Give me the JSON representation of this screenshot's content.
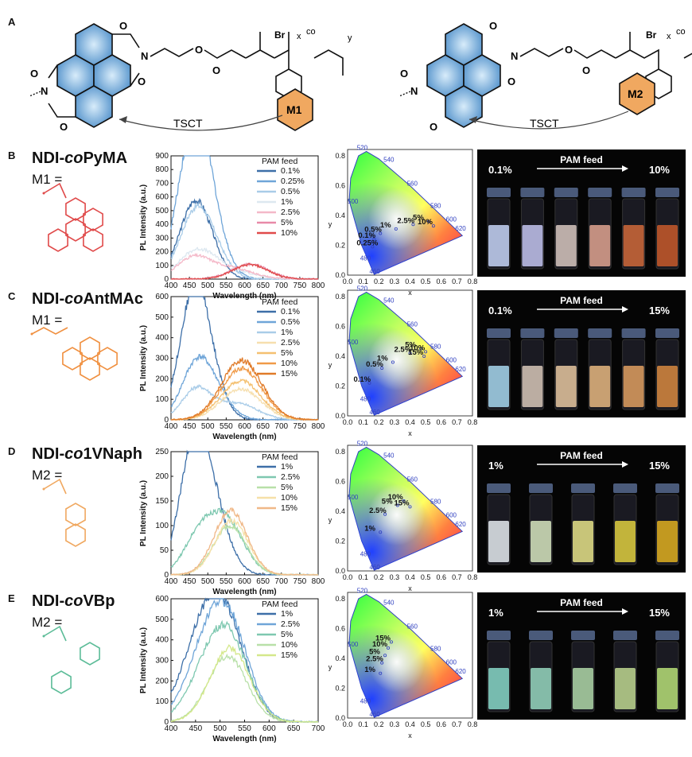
{
  "panel_a": {
    "label": "A",
    "br_label": "Br",
    "tsct_label": "TSCT",
    "left_monomer": "M1",
    "right_monomer": "M2"
  },
  "chart_data": [
    {
      "id": "B",
      "type": "line",
      "panel_label": "B",
      "polymer_prefix": "NDI-",
      "polymer_italic": "co",
      "polymer_suffix": "PyMA",
      "monomer_label": "M1 =",
      "substituent_color": "#e04a4a",
      "xlabel": "Wavelength (nm)",
      "ylabel": "PL Intensity (a.u.)",
      "xlim": [
        400,
        800
      ],
      "ylim": [
        0,
        900
      ],
      "xticks": [
        400,
        450,
        500,
        550,
        600,
        650,
        700,
        750,
        800
      ],
      "yticks": [
        0,
        100,
        200,
        300,
        400,
        500,
        600,
        700,
        800,
        900
      ],
      "legend_title": "PAM feed",
      "series": [
        {
          "name": "0.1%",
          "color": "#3d6fa8",
          "peaks": [
            [
              455,
              380,
              40
            ],
            [
              490,
              250,
              40
            ]
          ]
        },
        {
          "name": "0.25%",
          "color": "#6fa5d8",
          "peaks": [
            [
              458,
              860,
              42
            ],
            [
              495,
              440,
              45
            ]
          ]
        },
        {
          "name": "0.5%",
          "color": "#a9cce8",
          "peaks": [
            [
              460,
              350,
              42
            ],
            [
              500,
              240,
              45
            ]
          ]
        },
        {
          "name": "1%",
          "color": "#dde8f0",
          "peaks": [
            [
              470,
              200,
              50
            ],
            [
              560,
              60,
              60
            ]
          ]
        },
        {
          "name": "2.5%",
          "color": "#f4b8c8",
          "peaks": [
            [
              460,
              150,
              45
            ],
            [
              560,
              80,
              60
            ]
          ]
        },
        {
          "name": "5%",
          "color": "#e88aa8",
          "peaks": [
            [
              615,
              110,
              50
            ]
          ]
        },
        {
          "name": "10%",
          "color": "#e04a4a",
          "peaks": [
            [
              615,
              105,
              48
            ]
          ]
        }
      ],
      "cie_labels": [
        "0.1%",
        "0.25%",
        "0.5%",
        "1%",
        "2.5%",
        "5%",
        "10%"
      ],
      "cie_points": [
        [
          0.17,
          0.24
        ],
        [
          0.16,
          0.19
        ],
        [
          0.21,
          0.28
        ],
        [
          0.31,
          0.31
        ],
        [
          0.42,
          0.34
        ],
        [
          0.52,
          0.36
        ],
        [
          0.55,
          0.33
        ]
      ],
      "photo_left": "0.1%",
      "photo_center": "PAM feed",
      "photo_right": "10%",
      "vial_colors": [
        "#c8d6f8",
        "#c4c6f0",
        "#d8c8c0",
        "#e0a590",
        "#d06a3a",
        "#c85a2a"
      ]
    },
    {
      "id": "C",
      "type": "line",
      "panel_label": "C",
      "polymer_prefix": "NDI-",
      "polymer_italic": "co",
      "polymer_suffix": "AntMAc",
      "monomer_label": "M1 =",
      "substituent_color": "#f09040",
      "xlabel": "Wavelength (nm)",
      "ylabel": "PL Intensity (a.u.)",
      "xlim": [
        400,
        800
      ],
      "ylim": [
        0,
        600
      ],
      "xticks": [
        400,
        450,
        500,
        550,
        600,
        650,
        700,
        750,
        800
      ],
      "yticks": [
        0,
        100,
        200,
        300,
        400,
        500,
        600
      ],
      "legend_title": "PAM feed",
      "series": [
        {
          "name": "0.1%",
          "color": "#3d6fa8",
          "peaks": [
            [
              460,
              540,
              38
            ],
            [
              500,
              200,
              40
            ]
          ]
        },
        {
          "name": "0.5%",
          "color": "#6fa5d8",
          "peaks": [
            [
              465,
              210,
              40
            ],
            [
              510,
              140,
              45
            ]
          ]
        },
        {
          "name": "1%",
          "color": "#a9cce8",
          "peaks": [
            [
              470,
              150,
              40
            ],
            [
              580,
              80,
              55
            ]
          ]
        },
        {
          "name": "2.5%",
          "color": "#f6dfae",
          "peaks": [
            [
              590,
              150,
              55
            ]
          ]
        },
        {
          "name": "5%",
          "color": "#f4c070",
          "peaks": [
            [
              590,
              190,
              55
            ]
          ]
        },
        {
          "name": "10%",
          "color": "#f09a48",
          "peaks": [
            [
              592,
              250,
              55
            ]
          ]
        },
        {
          "name": "15%",
          "color": "#e07a28",
          "peaks": [
            [
              592,
              290,
              55
            ]
          ]
        }
      ],
      "cie_labels": [
        "0.1%",
        "0.5%",
        "1%",
        "2.5%",
        "5%",
        "10%",
        "15%"
      ],
      "cie_points": [
        [
          0.14,
          0.22
        ],
        [
          0.22,
          0.32
        ],
        [
          0.29,
          0.36
        ],
        [
          0.4,
          0.42
        ],
        [
          0.47,
          0.45
        ],
        [
          0.5,
          0.43
        ],
        [
          0.49,
          0.4
        ]
      ],
      "photo_left": "0.1%",
      "photo_center": "PAM feed",
      "photo_right": "15%",
      "vial_colors": [
        "#a8d8ee",
        "#d8c8b8",
        "#e8c8a0",
        "#e8b880",
        "#e0a060",
        "#d88a40"
      ]
    },
    {
      "id": "D",
      "type": "line",
      "panel_label": "D",
      "polymer_prefix": "NDI-",
      "polymer_italic": "co",
      "polymer_suffix": "1VNaph",
      "monomer_label": "M2 =",
      "substituent_color": "#f0a860",
      "xlabel": "Wavelength (nm)",
      "ylabel": "PL Intensity (a.u.)",
      "xlim": [
        400,
        800
      ],
      "ylim": [
        0,
        250
      ],
      "xticks": [
        400,
        450,
        500,
        550,
        600,
        650,
        700,
        750,
        800
      ],
      "yticks": [
        0,
        50,
        100,
        150,
        200,
        250
      ],
      "legend_title": "PAM feed",
      "series": [
        {
          "name": "1%",
          "color": "#3d6fa8",
          "peaks": [
            [
              462,
              225,
              40
            ],
            [
              510,
              120,
              45
            ]
          ]
        },
        {
          "name": "2.5%",
          "color": "#7ec8b0",
          "peaks": [
            [
              470,
              60,
              40
            ],
            [
              545,
              115,
              50
            ]
          ]
        },
        {
          "name": "5%",
          "color": "#b8e0a8",
          "peaks": [
            [
              560,
              100,
              45
            ]
          ]
        },
        {
          "name": "10%",
          "color": "#f6e0a8",
          "peaks": [
            [
              565,
              110,
              45
            ]
          ]
        },
        {
          "name": "15%",
          "color": "#f0b888",
          "peaks": [
            [
              562,
              130,
              45
            ]
          ]
        }
      ],
      "cie_labels": [
        "1%",
        "2.5%",
        "5%",
        "10%",
        "15%"
      ],
      "cie_points": [
        [
          0.21,
          0.26
        ],
        [
          0.24,
          0.38
        ],
        [
          0.32,
          0.44
        ],
        [
          0.36,
          0.47
        ],
        [
          0.4,
          0.43
        ]
      ],
      "photo_left": "1%",
      "photo_center": "PAM feed",
      "photo_right": "15%",
      "vial_colors": [
        "#e6ecf0",
        "#d8e8c0",
        "#e8e488",
        "#e0d040",
        "#e0b020"
      ]
    },
    {
      "id": "E",
      "type": "line",
      "panel_label": "E",
      "polymer_prefix": "NDI-",
      "polymer_italic": "co",
      "polymer_suffix": "VBp",
      "monomer_label": "M2 =",
      "substituent_color": "#5cbc98",
      "xlabel": "Wavelength (nm)",
      "ylabel": "PL Intensity (a.u.)",
      "xlim": [
        400,
        700
      ],
      "ylim": [
        0,
        600
      ],
      "xticks": [
        400,
        450,
        500,
        550,
        600,
        650,
        700
      ],
      "yticks": [
        0,
        100,
        200,
        300,
        400,
        500,
        600
      ],
      "legend_title": "PAM feed",
      "series": [
        {
          "name": "1%",
          "color": "#3d6fa8",
          "peaks": [
            [
              470,
              450,
              45
            ],
            [
              520,
              300,
              40
            ]
          ]
        },
        {
          "name": "2.5%",
          "color": "#6fa5d8",
          "peaks": [
            [
              480,
              380,
              45
            ],
            [
              525,
              300,
              40
            ]
          ]
        },
        {
          "name": "5%",
          "color": "#7ec8b0",
          "peaks": [
            [
              485,
              280,
              45
            ],
            [
              525,
              250,
              40
            ]
          ]
        },
        {
          "name": "10%",
          "color": "#b8e0a8",
          "peaks": [
            [
              515,
              320,
              40
            ]
          ]
        },
        {
          "name": "15%",
          "color": "#d4e88a",
          "peaks": [
            [
              520,
              360,
              40
            ]
          ]
        }
      ],
      "cie_labels": [
        "1%",
        "2.5%",
        "5%",
        "10%",
        "15%"
      ],
      "cie_points": [
        [
          0.21,
          0.3
        ],
        [
          0.22,
          0.37
        ],
        [
          0.24,
          0.42
        ],
        [
          0.26,
          0.47
        ],
        [
          0.28,
          0.51
        ]
      ],
      "photo_left": "1%",
      "photo_center": "PAM feed",
      "photo_right": "15%",
      "vial_colors": [
        "#88d8c8",
        "#98d8c0",
        "#b0d8a8",
        "#c0d890",
        "#b8e078"
      ]
    }
  ],
  "cie_axes": {
    "xlabel": "x",
    "ylabel": "y",
    "xticks": [
      "0.0",
      "0.1",
      "0.2",
      "0.3",
      "0.4",
      "0.5",
      "0.6",
      "0.7",
      "0.8"
    ],
    "yticks": [
      "0.0",
      "0.2",
      "0.4",
      "0.6",
      "0.8"
    ],
    "wavelength_labels": [
      "460",
      "480",
      "500",
      "520",
      "540",
      "560",
      "580",
      "600",
      "620"
    ]
  }
}
